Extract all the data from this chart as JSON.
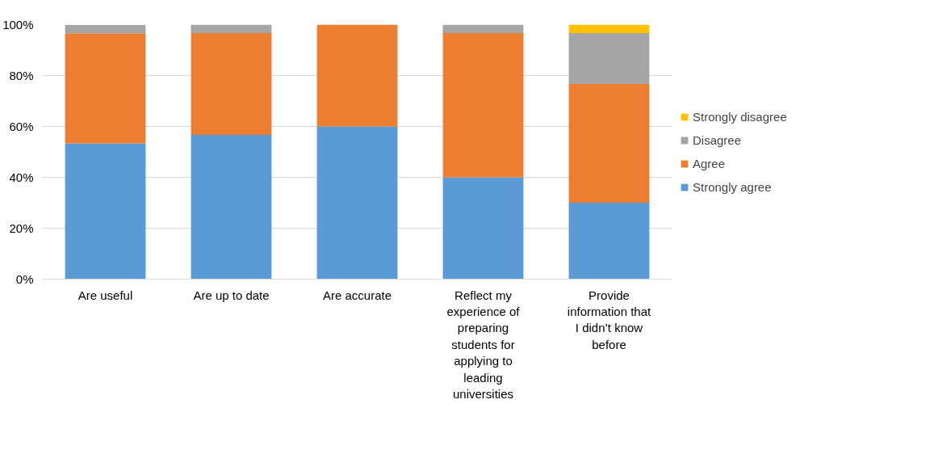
{
  "chart_data": {
    "type": "bar",
    "stacked": true,
    "categories": [
      "Are useful",
      "Are up to date",
      "Are accurate",
      "Reflect my experience of preparing students for applying to leading universities",
      "Provide information that I didn’t know before"
    ],
    "series": [
      {
        "name": "Strongly agree",
        "color": "#5b9bd5",
        "values": [
          53.3,
          56.7,
          60,
          40,
          30
        ]
      },
      {
        "name": "Agree",
        "color": "#ed7d31",
        "values": [
          43.3,
          40,
          40,
          56.7,
          46.7
        ]
      },
      {
        "name": "Disagree",
        "color": "#a5a5a5",
        "values": [
          3.3,
          3.3,
          0,
          3.3,
          20
        ]
      },
      {
        "name": "Strongly disagree",
        "color": "#ffc000",
        "values": [
          0,
          0,
          0,
          0,
          3.3
        ]
      }
    ],
    "ylim": [
      0,
      100
    ],
    "yticks": [
      {
        "value": 0,
        "label": "0%"
      },
      {
        "value": 20,
        "label": "20%"
      },
      {
        "value": 40,
        "label": "40%"
      },
      {
        "value": 60,
        "label": "60%"
      },
      {
        "value": 80,
        "label": "80%"
      },
      {
        "value": 100,
        "label": "100%"
      }
    ],
    "grid": "y",
    "legend": "right"
  }
}
